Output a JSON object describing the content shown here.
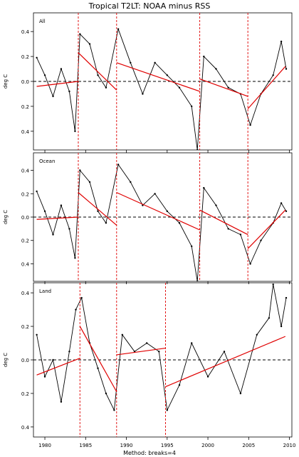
{
  "figure": {
    "title": "Tropical T2LT: NOAA minus RSS",
    "footer": "Method: breaks=4",
    "x_ticks": [
      1980,
      1985,
      1990,
      1995,
      2000,
      2005,
      2010
    ],
    "x_range": [
      1978.6,
      2010.3
    ],
    "colors": {
      "series": "#000000",
      "fit": "#e00000",
      "breaks": "#e00000",
      "zero": "#000000"
    }
  },
  "chart_data": [
    {
      "type": "line",
      "panel_label": "All",
      "ylabel": "deg C",
      "ylim": [
        -0.55,
        0.55
      ],
      "y_ticks": [
        0.4,
        0.2,
        0.0,
        -0.2,
        -0.4
      ],
      "y_tick_labels": [
        "0.4",
        "0.2",
        "0.0",
        "0.2",
        "0.4"
      ],
      "breaks": [
        1984.1,
        1988.8,
        1999.0,
        2004.9
      ],
      "fit_segments": [
        {
          "x": [
            1979.0,
            1984.1
          ],
          "y": [
            -0.04,
            0.0
          ]
        },
        {
          "x": [
            1984.1,
            1988.8
          ],
          "y": [
            0.23,
            -0.07
          ]
        },
        {
          "x": [
            1988.8,
            1999.0
          ],
          "y": [
            0.15,
            -0.08
          ]
        },
        {
          "x": [
            1999.0,
            2004.9
          ],
          "y": [
            0.02,
            -0.12
          ]
        },
        {
          "x": [
            2004.9,
            2009.5
          ],
          "y": [
            -0.22,
            0.12
          ]
        }
      ],
      "anomaly_points": [
        {
          "x": 1979.0,
          "y": 0.19
        },
        {
          "x": 1980.0,
          "y": 0.05
        },
        {
          "x": 1981.0,
          "y": -0.12
        },
        {
          "x": 1982.0,
          "y": 0.1
        },
        {
          "x": 1983.0,
          "y": -0.08
        },
        {
          "x": 1983.7,
          "y": -0.4
        },
        {
          "x": 1984.3,
          "y": 0.38
        },
        {
          "x": 1985.5,
          "y": 0.3
        },
        {
          "x": 1986.5,
          "y": 0.05
        },
        {
          "x": 1987.5,
          "y": -0.05
        },
        {
          "x": 1989.0,
          "y": 0.42
        },
        {
          "x": 1990.5,
          "y": 0.15
        },
        {
          "x": 1992.0,
          "y": -0.1
        },
        {
          "x": 1993.5,
          "y": 0.15
        },
        {
          "x": 1995.0,
          "y": 0.05
        },
        {
          "x": 1996.5,
          "y": -0.05
        },
        {
          "x": 1998.0,
          "y": -0.2
        },
        {
          "x": 1998.7,
          "y": -0.55
        },
        {
          "x": 1999.5,
          "y": 0.2
        },
        {
          "x": 2001.0,
          "y": 0.1
        },
        {
          "x": 2002.5,
          "y": -0.05
        },
        {
          "x": 2004.0,
          "y": -0.1
        },
        {
          "x": 2005.2,
          "y": -0.35
        },
        {
          "x": 2006.5,
          "y": -0.1
        },
        {
          "x": 2008.0,
          "y": 0.05
        },
        {
          "x": 2009.0,
          "y": 0.32
        },
        {
          "x": 2009.6,
          "y": 0.1
        }
      ]
    },
    {
      "type": "line",
      "panel_label": "Ocean",
      "ylabel": "deg C",
      "ylim": [
        -0.55,
        0.55
      ],
      "y_ticks": [
        0.4,
        0.2,
        0.0,
        -0.2,
        -0.4
      ],
      "y_tick_labels": [
        "0.4",
        "0.2",
        "0.0",
        "0.2",
        "0.4"
      ],
      "breaks": [
        1984.1,
        1988.8,
        1999.0,
        2004.9
      ],
      "fit_segments": [
        {
          "x": [
            1979.0,
            1984.1
          ],
          "y": [
            -0.02,
            0.0
          ]
        },
        {
          "x": [
            1984.1,
            1988.8
          ],
          "y": [
            0.21,
            -0.07
          ]
        },
        {
          "x": [
            1988.8,
            1999.0
          ],
          "y": [
            0.21,
            -0.11
          ]
        },
        {
          "x": [
            1999.0,
            2004.9
          ],
          "y": [
            0.06,
            -0.15
          ]
        },
        {
          "x": [
            2004.9,
            2009.5
          ],
          "y": [
            -0.27,
            0.06
          ]
        }
      ],
      "anomaly_points": [
        {
          "x": 1979.0,
          "y": 0.22
        },
        {
          "x": 1980.0,
          "y": 0.05
        },
        {
          "x": 1981.0,
          "y": -0.15
        },
        {
          "x": 1982.0,
          "y": 0.1
        },
        {
          "x": 1983.0,
          "y": -0.1
        },
        {
          "x": 1983.7,
          "y": -0.35
        },
        {
          "x": 1984.3,
          "y": 0.4
        },
        {
          "x": 1985.5,
          "y": 0.3
        },
        {
          "x": 1986.5,
          "y": 0.05
        },
        {
          "x": 1987.5,
          "y": -0.05
        },
        {
          "x": 1989.0,
          "y": 0.45
        },
        {
          "x": 1990.5,
          "y": 0.3
        },
        {
          "x": 1992.0,
          "y": 0.1
        },
        {
          "x": 1993.5,
          "y": 0.2
        },
        {
          "x": 1995.0,
          "y": 0.05
        },
        {
          "x": 1996.5,
          "y": -0.05
        },
        {
          "x": 1998.0,
          "y": -0.25
        },
        {
          "x": 1998.7,
          "y": -0.55
        },
        {
          "x": 1999.5,
          "y": 0.25
        },
        {
          "x": 2001.0,
          "y": 0.1
        },
        {
          "x": 2002.5,
          "y": -0.1
        },
        {
          "x": 2004.0,
          "y": -0.15
        },
        {
          "x": 2005.2,
          "y": -0.4
        },
        {
          "x": 2006.5,
          "y": -0.2
        },
        {
          "x": 2008.0,
          "y": -0.05
        },
        {
          "x": 2009.0,
          "y": 0.12
        },
        {
          "x": 2009.6,
          "y": 0.05
        }
      ]
    },
    {
      "type": "line",
      "panel_label": "Land",
      "ylabel": "deg C",
      "ylim": [
        -0.46,
        0.46
      ],
      "y_ticks": [
        0.4,
        0.2,
        0.0,
        -0.2,
        -0.4
      ],
      "y_tick_labels": [
        "0.4",
        "0.2",
        "0.0",
        "0.2",
        "0.4"
      ],
      "breaks": [
        1984.3,
        1988.8,
        1994.8
      ],
      "fit_segments": [
        {
          "x": [
            1979.0,
            1984.3
          ],
          "y": [
            -0.09,
            0.01
          ]
        },
        {
          "x": [
            1984.3,
            1988.8
          ],
          "y": [
            0.2,
            -0.19
          ]
        },
        {
          "x": [
            1988.8,
            1994.8
          ],
          "y": [
            0.03,
            0.07
          ]
        },
        {
          "x": [
            1994.8,
            2009.5
          ],
          "y": [
            -0.16,
            0.14
          ]
        }
      ],
      "anomaly_points": [
        {
          "x": 1979.0,
          "y": 0.15
        },
        {
          "x": 1980.0,
          "y": -0.1
        },
        {
          "x": 1981.0,
          "y": 0.0
        },
        {
          "x": 1982.0,
          "y": -0.25
        },
        {
          "x": 1983.0,
          "y": 0.05
        },
        {
          "x": 1983.8,
          "y": 0.3
        },
        {
          "x": 1984.5,
          "y": 0.37
        },
        {
          "x": 1985.5,
          "y": 0.1
        },
        {
          "x": 1986.5,
          "y": -0.05
        },
        {
          "x": 1987.5,
          "y": -0.2
        },
        {
          "x": 1988.5,
          "y": -0.3
        },
        {
          "x": 1989.5,
          "y": 0.15
        },
        {
          "x": 1991.0,
          "y": 0.05
        },
        {
          "x": 1992.5,
          "y": 0.1
        },
        {
          "x": 1994.0,
          "y": 0.05
        },
        {
          "x": 1995.0,
          "y": -0.3
        },
        {
          "x": 1996.5,
          "y": -0.15
        },
        {
          "x": 1998.0,
          "y": 0.1
        },
        {
          "x": 2000.0,
          "y": -0.1
        },
        {
          "x": 2002.0,
          "y": 0.05
        },
        {
          "x": 2004.0,
          "y": -0.2
        },
        {
          "x": 2006.0,
          "y": 0.15
        },
        {
          "x": 2007.5,
          "y": 0.25
        },
        {
          "x": 2008.0,
          "y": 0.45
        },
        {
          "x": 2009.0,
          "y": 0.2
        },
        {
          "x": 2009.6,
          "y": 0.37
        }
      ]
    }
  ]
}
